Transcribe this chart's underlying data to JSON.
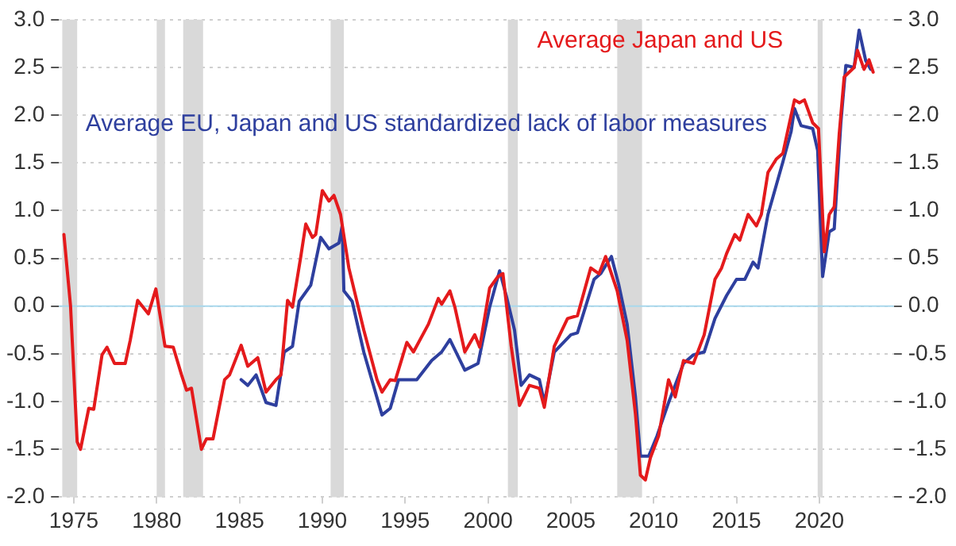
{
  "chart_data": {
    "type": "line",
    "xlim": [
      1974.1,
      2024.5
    ],
    "xticks": [
      1975,
      1980,
      1985,
      1990,
      1995,
      2000,
      2005,
      2010,
      2015,
      2020
    ],
    "ylim": [
      -2,
      3
    ],
    "yticks": [
      {
        "value": -2,
        "label": "-2.0"
      },
      {
        "value": -1.5,
        "label": "-1.5"
      },
      {
        "value": -1,
        "label": "-1.0"
      },
      {
        "value": -0.5,
        "label": "-0.5"
      },
      {
        "value": 0,
        "label": "0.0"
      },
      {
        "value": 0.5,
        "label": "0.5"
      },
      {
        "value": 1,
        "label": "1.0"
      },
      {
        "value": 1.5,
        "label": "1.5"
      },
      {
        "value": 2,
        "label": "2.0"
      },
      {
        "value": 2.5,
        "label": "2.5"
      },
      {
        "value": 3,
        "label": "3.0"
      }
    ],
    "y2lim": [
      -2,
      3
    ],
    "y2ticks": [
      {
        "value": -2,
        "label": "-2.0"
      },
      {
        "value": -1.5,
        "label": "-1.5"
      },
      {
        "value": -1,
        "label": "-1.0"
      },
      {
        "value": -0.5,
        "label": "-0.5"
      },
      {
        "value": 0,
        "label": "0.0"
      },
      {
        "value": 0.5,
        "label": "0.5"
      },
      {
        "value": 1,
        "label": "1.0"
      },
      {
        "value": 1.5,
        "label": "1.5"
      },
      {
        "value": 2,
        "label": "2.0"
      },
      {
        "value": 2.5,
        "label": "2.5"
      },
      {
        "value": 3,
        "label": "3.0"
      }
    ],
    "grid": "y",
    "legend": false,
    "marker": "none",
    "line_style": "solid",
    "ref_lines": [
      {
        "axis": "y",
        "value": 0,
        "color": "#a9d8ec"
      }
    ],
    "bands": [
      {
        "axis": "x",
        "from": 1974.3,
        "to": 1975.2,
        "color": "#d9d9d9"
      },
      {
        "axis": "x",
        "from": 1980.0,
        "to": 1980.5,
        "color": "#d9d9d9"
      },
      {
        "axis": "x",
        "from": 1981.6,
        "to": 1982.8,
        "color": "#d9d9d9"
      },
      {
        "axis": "x",
        "from": 1990.5,
        "to": 1991.3,
        "color": "#d9d9d9"
      },
      {
        "axis": "x",
        "from": 2001.2,
        "to": 2001.8,
        "color": "#d9d9d9"
      },
      {
        "axis": "x",
        "from": 2007.8,
        "to": 2009.3,
        "color": "#d9d9d9"
      },
      {
        "axis": "x",
        "from": 2019.9,
        "to": 2020.2,
        "color": "#d9d9d9"
      }
    ],
    "series": [
      {
        "name": "Average Japan and US",
        "color": "#e41a1c",
        "x": [
          1974.4,
          1974.8,
          1975.2,
          1975.4,
          1975.9,
          1976.2,
          1976.7,
          1977.0,
          1977.45,
          1978.1,
          1978.4,
          1978.85,
          1979.5,
          1979.95,
          1980.5,
          1981.0,
          1981.5,
          1981.8,
          1982.1,
          1982.7,
          1983.0,
          1983.4,
          1984.1,
          1984.4,
          1985.1,
          1985.5,
          1986.1,
          1986.6,
          1987.2,
          1987.5,
          1987.9,
          1988.2,
          1988.7,
          1989.0,
          1989.4,
          1989.6,
          1990.0,
          1990.4,
          1990.7,
          1991.1,
          1991.6,
          1992.5,
          1993.3,
          1993.6,
          1994.1,
          1994.4,
          1995.1,
          1995.5,
          1996.4,
          1997.0,
          1997.2,
          1997.7,
          1998.0,
          1998.6,
          1999.2,
          1999.5,
          2000.1,
          2000.6,
          2000.9,
          2001.4,
          2001.9,
          2002.5,
          2003.1,
          2003.4,
          2004.0,
          2004.8,
          2005.4,
          2006.2,
          2006.7,
          2007.1,
          2007.8,
          2008.4,
          2008.9,
          2009.2,
          2009.5,
          2009.8,
          2010.3,
          2010.9,
          2011.3,
          2011.8,
          2012.4,
          2013.05,
          2013.7,
          2014.1,
          2014.4,
          2014.9,
          2015.2,
          2015.7,
          2016.2,
          2016.5,
          2016.9,
          2017.4,
          2017.8,
          2018.2,
          2018.5,
          2018.8,
          2019.1,
          2019.6,
          2019.95,
          2020.3,
          2020.6,
          2020.9,
          2021.2,
          2021.5,
          2022.1,
          2022.3,
          2022.7,
          2023.0,
          2023.25
        ],
        "values": [
          0.75,
          0.0,
          -1.42,
          -1.5,
          -1.07,
          -1.08,
          -0.51,
          -0.43,
          -0.6,
          -0.6,
          -0.36,
          0.06,
          -0.08,
          0.18,
          -0.42,
          -0.43,
          -0.72,
          -0.88,
          -0.86,
          -1.5,
          -1.39,
          -1.39,
          -0.77,
          -0.72,
          -0.41,
          -0.63,
          -0.54,
          -0.9,
          -0.77,
          -0.72,
          0.06,
          -0.01,
          0.52,
          0.86,
          0.72,
          0.75,
          1.21,
          1.1,
          1.16,
          0.96,
          0.4,
          -0.25,
          -0.77,
          -0.9,
          -0.77,
          -0.78,
          -0.38,
          -0.48,
          -0.19,
          0.08,
          0.02,
          0.16,
          -0.01,
          -0.48,
          -0.3,
          -0.43,
          0.19,
          0.31,
          0.34,
          -0.42,
          -1.04,
          -0.83,
          -0.86,
          -1.06,
          -0.42,
          -0.13,
          -0.1,
          0.4,
          0.34,
          0.52,
          0.16,
          -0.36,
          -1.13,
          -1.77,
          -1.82,
          -1.59,
          -1.36,
          -0.77,
          -0.95,
          -0.57,
          -0.6,
          -0.3,
          0.28,
          0.4,
          0.55,
          0.75,
          0.69,
          0.96,
          0.84,
          0.96,
          1.4,
          1.54,
          1.6,
          1.92,
          2.16,
          2.13,
          2.16,
          1.92,
          1.86,
          0.57,
          0.96,
          1.04,
          1.8,
          2.4,
          2.5,
          2.68,
          2.48,
          2.58,
          2.45
        ]
      },
      {
        "name": "Average EU, Japan and US standardized lack of labor measures",
        "color": "#2e3f9e",
        "x": [
          1985.1,
          1985.5,
          1986.0,
          1986.6,
          1987.2,
          1987.7,
          1988.2,
          1988.6,
          1989.3,
          1989.9,
          1990.4,
          1991.0,
          1991.2,
          1991.3,
          1991.8,
          1992.5,
          1993.6,
          1994.1,
          1994.6,
          1995.7,
          1996.6,
          1997.2,
          1997.7,
          1998.6,
          1999.4,
          2000.1,
          2000.7,
          2001.1,
          2001.6,
          2002.0,
          2002.5,
          2003.1,
          2003.4,
          2004.0,
          2005.0,
          2005.4,
          2006.4,
          2006.8,
          2007.45,
          2007.9,
          2008.4,
          2008.9,
          2009.2,
          2009.7,
          2010.2,
          2010.9,
          2011.8,
          2012.4,
          2013.05,
          2013.7,
          2014.4,
          2015.0,
          2015.5,
          2016.0,
          2016.3,
          2016.9,
          2017.8,
          2018.3,
          2018.5,
          2018.9,
          2019.6,
          2019.9,
          2020.2,
          2020.6,
          2020.9,
          2021.3,
          2021.6,
          2022.1,
          2022.4,
          2022.8,
          2023.1
        ],
        "values": [
          -0.77,
          -0.83,
          -0.72,
          -1.01,
          -1.04,
          -0.48,
          -0.42,
          0.05,
          0.22,
          0.72,
          0.6,
          0.66,
          0.84,
          0.16,
          0.05,
          -0.48,
          -1.14,
          -1.07,
          -0.77,
          -0.77,
          -0.57,
          -0.48,
          -0.35,
          -0.67,
          -0.6,
          -0.01,
          0.37,
          0.11,
          -0.25,
          -0.83,
          -0.72,
          -0.77,
          -1.01,
          -0.48,
          -0.3,
          -0.28,
          0.28,
          0.34,
          0.52,
          0.22,
          -0.19,
          -0.95,
          -1.57,
          -1.57,
          -1.36,
          -1.01,
          -0.6,
          -0.51,
          -0.48,
          -0.13,
          0.11,
          0.28,
          0.28,
          0.46,
          0.4,
          0.96,
          1.51,
          1.83,
          2.07,
          1.89,
          1.86,
          1.63,
          0.31,
          0.78,
          0.81,
          1.92,
          2.52,
          2.5,
          2.89,
          2.57,
          2.48
        ]
      }
    ]
  }
}
